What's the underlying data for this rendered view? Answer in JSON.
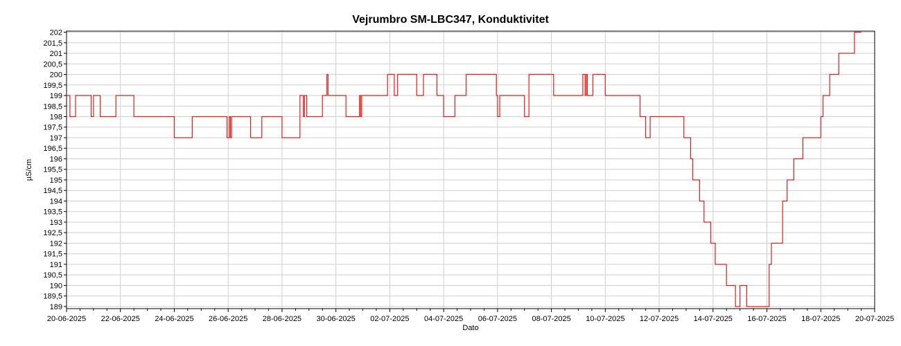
{
  "chart_data": {
    "type": "line",
    "title": "Vejrumbro SM-LBC347, Konduktivitet",
    "xlabel": "Dato",
    "ylabel": "µS/cm",
    "x_range": [
      "2025-06-20T00:00",
      "2025-07-20T00:00"
    ],
    "ylim": [
      188.9,
      202.05
    ],
    "grid": true,
    "x_tick_labels": [
      "20-06-2025",
      "22-06-2025",
      "24-06-2025",
      "26-06-2025",
      "28-06-2025",
      "30-06-2025",
      "02-07-2025",
      "04-07-2025",
      "06-07-2025",
      "08-07-2025",
      "10-07-2025",
      "12-07-2025",
      "14-07-2025",
      "16-07-2025",
      "18-07-2025",
      "20-07-2025"
    ],
    "y_tick_labels": [
      "189",
      "189,5",
      "190",
      "190,5",
      "191",
      "191,5",
      "192",
      "192,5",
      "193",
      "193,5",
      "194",
      "194,5",
      "195",
      "195,5",
      "196",
      "196,5",
      "197",
      "197,5",
      "198",
      "198,5",
      "199",
      "199,5",
      "200",
      "200,5",
      "201",
      "201,5",
      "202"
    ],
    "series": [
      {
        "color": "#e81a1a",
        "points": [
          [
            "2025-06-20T00:00",
            199
          ],
          [
            "2025-06-20T03:00",
            198
          ],
          [
            "2025-06-20T08:00",
            199
          ],
          [
            "2025-06-20T22:00",
            199
          ],
          [
            "2025-06-20T22:00",
            198
          ],
          [
            "2025-06-21T00:00",
            199
          ],
          [
            "2025-06-21T06:00",
            198
          ],
          [
            "2025-06-21T20:00",
            198
          ],
          [
            "2025-06-21T20:00",
            199
          ],
          [
            "2025-06-22T12:00",
            198
          ],
          [
            "2025-06-24T00:00",
            198
          ],
          [
            "2025-06-24T00:00",
            197
          ],
          [
            "2025-06-24T16:00",
            198
          ],
          [
            "2025-06-25T23:00",
            198
          ],
          [
            "2025-06-25T23:00",
            197
          ],
          [
            "2025-06-26T01:00",
            198
          ],
          [
            "2025-06-26T02:00",
            197
          ],
          [
            "2025-06-26T03:00",
            198
          ],
          [
            "2025-06-26T20:00",
            198
          ],
          [
            "2025-06-26T20:00",
            197
          ],
          [
            "2025-06-27T06:00",
            198
          ],
          [
            "2025-06-28T00:00",
            198
          ],
          [
            "2025-06-28T00:00",
            197
          ],
          [
            "2025-06-28T16:00",
            197
          ],
          [
            "2025-06-28T16:00",
            199
          ],
          [
            "2025-06-28T19:00",
            198
          ],
          [
            "2025-06-28T20:00",
            199
          ],
          [
            "2025-06-28T22:00",
            198
          ],
          [
            "2025-06-29T12:00",
            198
          ],
          [
            "2025-06-29T12:00",
            199
          ],
          [
            "2025-06-29T16:00",
            200
          ],
          [
            "2025-06-29T17:00",
            199
          ],
          [
            "2025-06-30T09:00",
            199
          ],
          [
            "2025-06-30T09:00",
            198
          ],
          [
            "2025-06-30T21:00",
            199
          ],
          [
            "2025-06-30T22:00",
            198
          ],
          [
            "2025-06-30T23:00",
            199
          ],
          [
            "2025-07-01T22:00",
            199
          ],
          [
            "2025-07-01T22:00",
            200
          ],
          [
            "2025-07-02T04:00",
            199
          ],
          [
            "2025-07-02T07:00",
            200
          ],
          [
            "2025-07-03T00:00",
            199
          ],
          [
            "2025-07-03T06:00",
            200
          ],
          [
            "2025-07-03T18:00",
            199
          ],
          [
            "2025-07-04T00:00",
            198
          ],
          [
            "2025-07-04T10:00",
            199
          ],
          [
            "2025-07-04T20:00",
            200
          ],
          [
            "2025-07-05T23:00",
            199
          ],
          [
            "2025-07-06T00:00",
            198
          ],
          [
            "2025-07-06T02:00",
            199
          ],
          [
            "2025-07-07T00:00",
            199
          ],
          [
            "2025-07-07T00:00",
            198
          ],
          [
            "2025-07-07T04:00",
            200
          ],
          [
            "2025-07-08T02:00",
            199
          ],
          [
            "2025-07-09T04:00",
            199
          ],
          [
            "2025-07-09T04:00",
            200
          ],
          [
            "2025-07-09T06:00",
            199
          ],
          [
            "2025-07-09T07:00",
            200
          ],
          [
            "2025-07-09T08:00",
            199
          ],
          [
            "2025-07-09T13:00",
            200
          ],
          [
            "2025-07-10T00:00",
            199
          ],
          [
            "2025-07-11T07:00",
            198
          ],
          [
            "2025-07-11T12:00",
            197
          ],
          [
            "2025-07-11T16:00",
            198
          ],
          [
            "2025-07-12T22:00",
            197
          ],
          [
            "2025-07-13T04:00",
            196
          ],
          [
            "2025-07-13T06:00",
            195
          ],
          [
            "2025-07-13T12:00",
            194
          ],
          [
            "2025-07-13T16:00",
            193
          ],
          [
            "2025-07-13T22:00",
            192
          ],
          [
            "2025-07-14T02:00",
            191
          ],
          [
            "2025-07-14T12:00",
            190
          ],
          [
            "2025-07-14T20:00",
            189
          ],
          [
            "2025-07-15T00:00",
            190
          ],
          [
            "2025-07-15T06:00",
            189
          ],
          [
            "2025-07-15T12:00",
            189
          ],
          [
            "2025-07-16T02:00",
            191
          ],
          [
            "2025-07-16T04:00",
            192
          ],
          [
            "2025-07-16T14:00",
            194
          ],
          [
            "2025-07-16T18:00",
            195
          ],
          [
            "2025-07-17T00:00",
            196
          ],
          [
            "2025-07-17T08:00",
            197
          ],
          [
            "2025-07-18T00:00",
            198
          ],
          [
            "2025-07-18T02:00",
            199
          ],
          [
            "2025-07-18T08:00",
            200
          ],
          [
            "2025-07-18T16:00",
            201
          ],
          [
            "2025-07-19T06:00",
            202
          ],
          [
            "2025-07-19T12:00",
            202
          ]
        ]
      }
    ]
  }
}
